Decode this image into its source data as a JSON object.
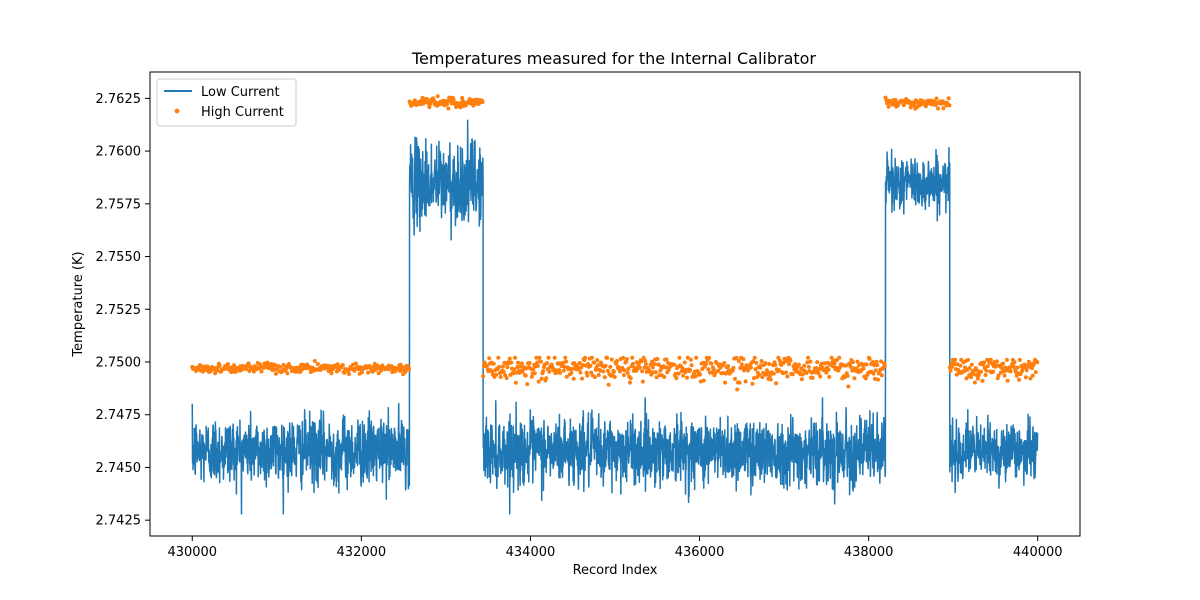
{
  "chart_data": {
    "type": "line",
    "title": "Temperatures measured for the Internal Calibrator",
    "xlabel": "Record Index",
    "ylabel": "Temperature (K)",
    "xlim": [
      429500,
      440500
    ],
    "ylim": [
      2.74175,
      2.76375
    ],
    "x_ticks": [
      430000,
      432000,
      434000,
      436000,
      438000,
      440000
    ],
    "x_tick_labels": [
      "430000",
      "432000",
      "434000",
      "436000",
      "438000",
      "440000"
    ],
    "y_ticks": [
      2.7425,
      2.745,
      2.7475,
      2.75,
      2.7525,
      2.755,
      2.7575,
      2.76,
      2.7625
    ],
    "y_tick_labels": [
      "2.7425",
      "2.7450",
      "2.7475",
      "2.7500",
      "2.7525",
      "2.7550",
      "2.7575",
      "2.7600",
      "2.7625"
    ],
    "grid": false,
    "legend_position": "upper left",
    "series": [
      {
        "name": "Low Current",
        "type": "line",
        "color": "#1f77b4",
        "segments": [
          {
            "x_start": 430000,
            "x_end": 432570,
            "mean": 2.7458,
            "noise_min": 2.7428,
            "noise_max": 2.7484
          },
          {
            "x_start": 432570,
            "x_end": 433440,
            "mean": 2.7585,
            "noise_min": 2.7549,
            "noise_max": 2.7618
          },
          {
            "x_start": 433440,
            "x_end": 438200,
            "mean": 2.7458,
            "noise_min": 2.7428,
            "noise_max": 2.7483
          },
          {
            "x_start": 438200,
            "x_end": 438960,
            "mean": 2.7585,
            "noise_min": 2.7562,
            "noise_max": 2.7606
          },
          {
            "x_start": 438960,
            "x_end": 440000,
            "mean": 2.7458,
            "noise_min": 2.7433,
            "noise_max": 2.748
          }
        ]
      },
      {
        "name": "High Current",
        "type": "scatter",
        "color": "#ff7f0e",
        "segments": [
          {
            "x_start": 430000,
            "x_end": 432570,
            "mean": 2.7497,
            "noise_min": 2.7494,
            "noise_max": 2.7502
          },
          {
            "x_start": 432570,
            "x_end": 433440,
            "mean": 2.7623,
            "noise_min": 2.7618,
            "noise_max": 2.7626
          },
          {
            "x_start": 433440,
            "x_end": 438200,
            "mean": 2.7497,
            "noise_min": 2.7481,
            "noise_max": 2.7502
          },
          {
            "x_start": 438200,
            "x_end": 438960,
            "mean": 2.7623,
            "noise_min": 2.762,
            "noise_max": 2.7627
          },
          {
            "x_start": 438960,
            "x_end": 440000,
            "mean": 2.7497,
            "noise_min": 2.7481,
            "noise_max": 2.7501
          }
        ]
      }
    ]
  }
}
